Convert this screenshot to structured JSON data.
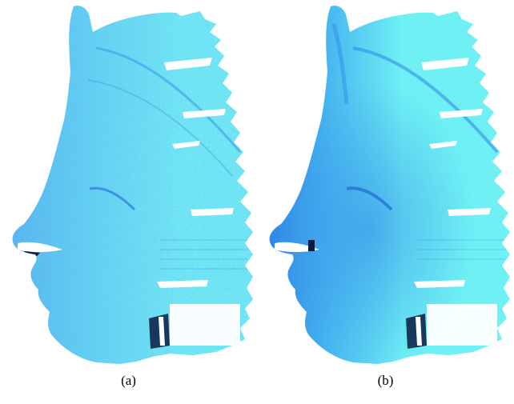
{
  "figure": {
    "panels": [
      {
        "label": "(a)",
        "shading": "noisy"
      },
      {
        "label": "(b)",
        "shading": "smooth"
      }
    ]
  },
  "colors": {
    "mesh_light": "#6ff0f4",
    "mesh_mid": "#4fc8f0",
    "mesh_dark": "#2f86e6",
    "hole": "#ffffff",
    "shadow": "#0a1a40"
  }
}
